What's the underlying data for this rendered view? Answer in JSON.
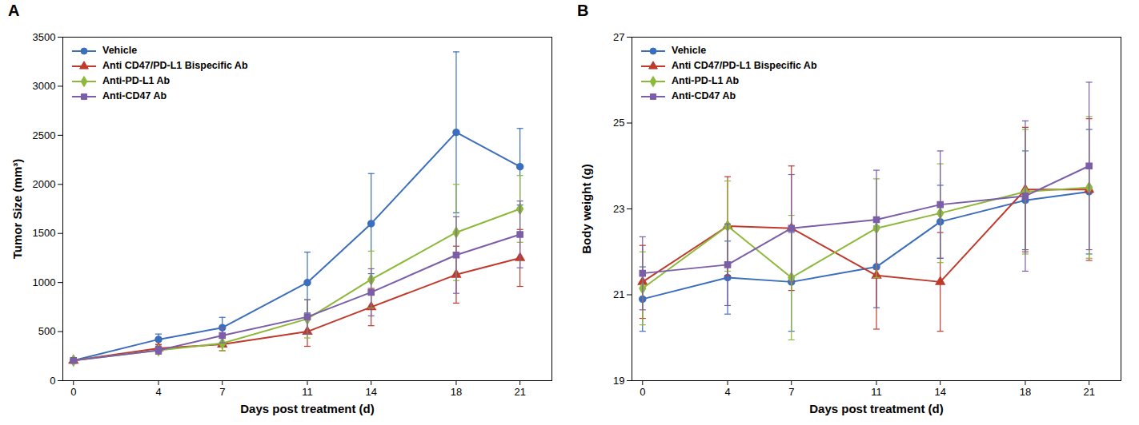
{
  "chart_data": [
    {
      "type": "line",
      "title": "A",
      "xlabel": "Days post treatment (d)",
      "ylabel": "Tumor Size (mm³)",
      "x": [
        0,
        4,
        7,
        11,
        14,
        18,
        21
      ],
      "xlim": [
        -0.5,
        22.5
      ],
      "xticks": [
        0,
        4,
        7,
        11,
        14,
        18,
        21
      ],
      "ylim": [
        0,
        3500
      ],
      "yticks": [
        0,
        500,
        1000,
        1500,
        2000,
        2500,
        3000,
        3500
      ],
      "grid": false,
      "legend": "upper left",
      "series": [
        {
          "name": "Vehicle",
          "color": "#3C6EBE",
          "marker": "circle",
          "values": [
            205,
            420,
            540,
            1000,
            1600,
            2530,
            2180
          ],
          "errors": [
            15,
            55,
            105,
            310,
            510,
            820,
            390
          ]
        },
        {
          "name": "Anti CD47/PD-L1 Bispecific Ab",
          "color": "#C0392B",
          "marker": "triangle",
          "values": [
            205,
            330,
            370,
            500,
            750,
            1080,
            1250
          ],
          "errors": [
            15,
            40,
            65,
            150,
            190,
            290,
            290
          ]
        },
        {
          "name": "Anti-PD-L1 Ab",
          "color": "#8DB83A",
          "marker": "diamond",
          "values": [
            205,
            310,
            380,
            630,
            1030,
            1510,
            1750
          ],
          "errors": [
            15,
            40,
            75,
            195,
            290,
            490,
            340
          ]
        },
        {
          "name": "Anti-CD47 Ab",
          "color": "#7B5EA7",
          "marker": "square",
          "values": [
            205,
            310,
            460,
            650,
            900,
            1280,
            1490
          ],
          "errors": [
            15,
            40,
            75,
            175,
            240,
            390,
            340
          ]
        }
      ]
    },
    {
      "type": "line",
      "title": "B",
      "xlabel": "Days post treatment (d)",
      "ylabel": "Body weight (g)",
      "x": [
        0,
        4,
        7,
        11,
        14,
        18,
        21
      ],
      "xlim": [
        -0.5,
        22.5
      ],
      "xticks": [
        0,
        4,
        7,
        11,
        14,
        18,
        21
      ],
      "ylim": [
        19,
        27
      ],
      "yticks": [
        19,
        21,
        23,
        25,
        27
      ],
      "grid": false,
      "legend": "upper left",
      "series": [
        {
          "name": "Vehicle",
          "color": "#3C6EBE",
          "marker": "circle",
          "values": [
            20.9,
            21.4,
            21.3,
            21.65,
            22.7,
            23.2,
            23.4
          ],
          "errors": [
            0.75,
            0.85,
            1.15,
            0.95,
            0.85,
            1.15,
            1.45
          ]
        },
        {
          "name": "Anti CD47/PD-L1 Bispecific Ab",
          "color": "#C0392B",
          "marker": "triangle",
          "values": [
            21.3,
            22.6,
            22.55,
            21.45,
            21.3,
            23.45,
            23.45
          ],
          "errors": [
            0.85,
            1.15,
            1.45,
            1.25,
            1.15,
            1.45,
            1.65
          ]
        },
        {
          "name": "Anti-PD-L1 Ab",
          "color": "#8DB83A",
          "marker": "diamond",
          "values": [
            21.15,
            22.6,
            21.4,
            22.55,
            22.9,
            23.4,
            23.5
          ],
          "errors": [
            0.85,
            1.05,
            1.45,
            1.15,
            1.15,
            1.45,
            1.65
          ]
        },
        {
          "name": "Anti-CD47 Ab",
          "color": "#7B5EA7",
          "marker": "square",
          "values": [
            21.5,
            21.7,
            22.55,
            22.75,
            23.1,
            23.3,
            24.0
          ],
          "errors": [
            0.85,
            0.95,
            1.25,
            1.15,
            1.25,
            1.75,
            1.95
          ]
        }
      ]
    }
  ]
}
